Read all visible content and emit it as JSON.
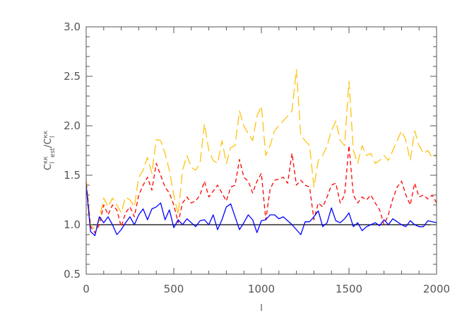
{
  "chart_data": {
    "type": "line",
    "xlabel": "l",
    "ylabel": {
      "base": "C",
      "sub": "l",
      "sup": "κκ",
      "sub2": "est",
      "divider": "/"
    },
    "xlim": [
      0,
      2000
    ],
    "ylim": [
      0.5,
      3.0
    ],
    "xticks": [
      0,
      500,
      1000,
      1500,
      2000
    ],
    "yticks": [
      0.5,
      1.0,
      1.5,
      2.0,
      2.5,
      3.0
    ],
    "xtick_labels": [
      "0",
      "500",
      "1000",
      "1500",
      "2000"
    ],
    "ytick_labels": [
      "0.5",
      "1.0",
      "1.5",
      "2.0",
      "2.5",
      "3.0"
    ],
    "reference_line": {
      "y": 1.0,
      "color": "#000000"
    },
    "series": [
      {
        "color": "#ffc20e",
        "style": "long-dash",
        "x": [
          0,
          25,
          50,
          75,
          100,
          125,
          150,
          175,
          200,
          225,
          250,
          275,
          300,
          325,
          350,
          375,
          400,
          425,
          450,
          475,
          500,
          525,
          550,
          575,
          600,
          625,
          650,
          675,
          700,
          725,
          750,
          775,
          800,
          825,
          850,
          875,
          900,
          925,
          950,
          975,
          1000,
          1025,
          1050,
          1075,
          1100,
          1125,
          1150,
          1175,
          1200,
          1225,
          1250,
          1275,
          1300,
          1325,
          1350,
          1375,
          1400,
          1425,
          1450,
          1475,
          1500,
          1525,
          1550,
          1575,
          1600,
          1625,
          1650,
          1675,
          1700,
          1725,
          1750,
          1775,
          1800,
          1825,
          1850,
          1875,
          1900,
          1925,
          1950,
          1975,
          2000
        ],
        "y": [
          1.47,
          1.0,
          0.95,
          1.05,
          1.27,
          1.18,
          1.27,
          1.2,
          1.12,
          1.28,
          1.25,
          1.18,
          1.48,
          1.55,
          1.68,
          1.52,
          1.86,
          1.85,
          1.72,
          1.55,
          1.3,
          1.1,
          1.55,
          1.7,
          1.58,
          1.55,
          1.62,
          2.02,
          1.75,
          1.65,
          1.62,
          1.85,
          1.62,
          1.78,
          1.8,
          2.15,
          2.0,
          1.92,
          1.85,
          2.1,
          2.2,
          1.7,
          1.8,
          1.95,
          2.0,
          2.05,
          2.1,
          2.15,
          2.57,
          1.9,
          1.85,
          1.8,
          1.38,
          1.65,
          1.7,
          1.8,
          1.95,
          2.05,
          1.85,
          1.8,
          2.45,
          1.75,
          1.62,
          1.8,
          1.7,
          1.72,
          1.62,
          1.65,
          1.7,
          1.65,
          1.75,
          1.85,
          1.95,
          1.85,
          1.65,
          1.95,
          1.8,
          1.72,
          1.75,
          1.68,
          1.7
        ]
      },
      {
        "color": "#ff0000",
        "style": "short-dash",
        "x": [
          0,
          25,
          50,
          75,
          100,
          125,
          150,
          175,
          200,
          225,
          250,
          275,
          300,
          325,
          350,
          375,
          400,
          425,
          450,
          475,
          500,
          525,
          550,
          575,
          600,
          625,
          650,
          675,
          700,
          725,
          750,
          775,
          800,
          825,
          850,
          875,
          900,
          925,
          950,
          975,
          1000,
          1025,
          1050,
          1075,
          1100,
          1125,
          1150,
          1175,
          1200,
          1225,
          1250,
          1275,
          1300,
          1325,
          1350,
          1375,
          1400,
          1425,
          1450,
          1475,
          1500,
          1525,
          1550,
          1575,
          1600,
          1625,
          1650,
          1675,
          1700,
          1725,
          1750,
          1775,
          1800,
          1825,
          1850,
          1875,
          1900,
          1925,
          1950,
          1975,
          2000
        ],
        "y": [
          1.42,
          0.98,
          0.92,
          1.0,
          1.2,
          1.1,
          1.2,
          1.15,
          0.98,
          1.12,
          1.18,
          1.08,
          1.3,
          1.4,
          1.48,
          1.35,
          1.62,
          1.5,
          1.38,
          1.32,
          1.2,
          1.02,
          1.22,
          1.28,
          1.22,
          1.24,
          1.3,
          1.44,
          1.28,
          1.34,
          1.4,
          1.32,
          1.24,
          1.38,
          1.4,
          1.66,
          1.48,
          1.44,
          1.32,
          1.44,
          1.52,
          1.05,
          1.36,
          1.45,
          1.46,
          1.48,
          1.42,
          1.72,
          1.4,
          1.45,
          1.4,
          1.38,
          1.05,
          1.22,
          1.18,
          1.28,
          1.4,
          1.42,
          1.22,
          1.3,
          1.8,
          1.3,
          1.22,
          1.28,
          1.25,
          1.3,
          1.22,
          1.15,
          1.0,
          1.1,
          1.26,
          1.38,
          1.44,
          1.3,
          1.2,
          1.42,
          1.28,
          1.3,
          1.26,
          1.3,
          1.22
        ]
      },
      {
        "color": "#0000ff",
        "style": "solid",
        "x": [
          0,
          25,
          50,
          75,
          100,
          125,
          150,
          175,
          200,
          225,
          250,
          275,
          300,
          325,
          350,
          375,
          400,
          425,
          450,
          475,
          500,
          525,
          550,
          575,
          600,
          625,
          650,
          675,
          700,
          725,
          750,
          775,
          800,
          825,
          850,
          875,
          900,
          925,
          950,
          975,
          1000,
          1025,
          1050,
          1075,
          1100,
          1125,
          1150,
          1175,
          1200,
          1225,
          1250,
          1275,
          1300,
          1325,
          1350,
          1375,
          1400,
          1425,
          1450,
          1475,
          1500,
          1525,
          1550,
          1575,
          1600,
          1625,
          1650,
          1675,
          1700,
          1725,
          1750,
          1775,
          1800,
          1825,
          1850,
          1875,
          1900,
          1925,
          1950,
          1975,
          2000
        ],
        "y": [
          1.4,
          0.93,
          0.89,
          1.08,
          1.02,
          1.08,
          1.0,
          0.9,
          0.95,
          1.02,
          1.08,
          1.0,
          1.1,
          1.16,
          1.05,
          1.16,
          1.18,
          1.22,
          1.05,
          1.15,
          0.97,
          1.05,
          1.0,
          1.06,
          1.02,
          0.98,
          1.04,
          1.05,
          1.0,
          1.1,
          0.95,
          1.05,
          1.18,
          1.21,
          1.08,
          0.95,
          1.02,
          1.1,
          1.05,
          0.92,
          1.04,
          1.05,
          1.1,
          1.1,
          1.06,
          1.08,
          1.04,
          1.0,
          0.95,
          0.9,
          1.03,
          1.03,
          1.08,
          1.14,
          0.98,
          1.02,
          1.17,
          1.04,
          1.02,
          1.06,
          1.12,
          0.98,
          1.02,
          0.94,
          0.98,
          1.0,
          1.02,
          0.99,
          1.05,
          1.0,
          1.06,
          1.03,
          1.0,
          0.98,
          1.04,
          1.0,
          0.98,
          0.98,
          1.04,
          1.03,
          1.02
        ]
      }
    ]
  }
}
